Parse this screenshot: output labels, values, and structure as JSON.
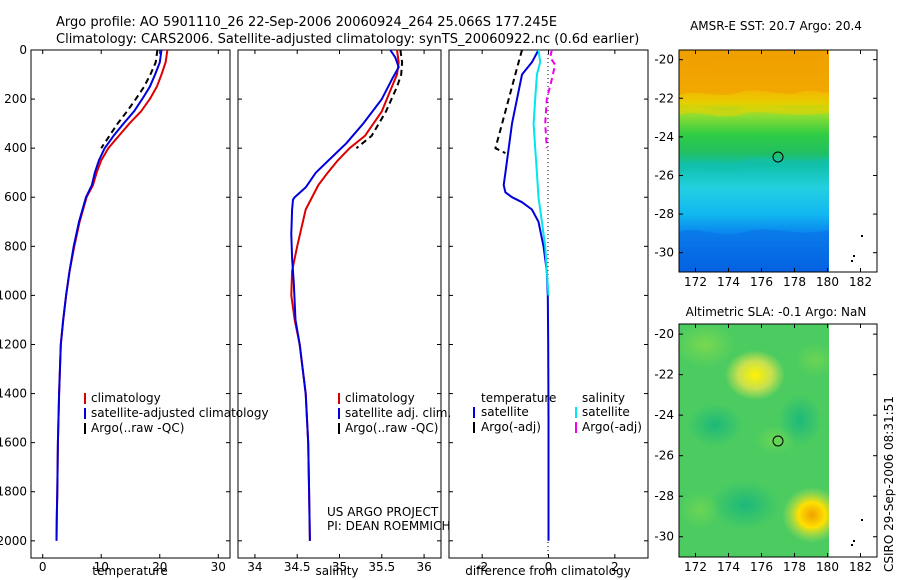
{
  "header": {
    "title_line1": "Argo profile: AO 5901110_26 22-Sep-2006 20060924_264 25.066S 177.245E",
    "title_line2": "Climatology: CARS2006. Satellite-adjusted climatology: synTS_20060922.nc (0.6d earlier)"
  },
  "colors": {
    "climatology": "#dd0000",
    "satellite": "#0000dd",
    "argo": "#000000",
    "sal_satellite": "#00e5ee",
    "sal_argo": "#ee00ee"
  },
  "footer": {
    "project": "US ARGO PROJECT",
    "pi": "PI: DEAN ROEMMICH",
    "timestamp": "CSIRO  29-Sep-2006 08:31:51"
  },
  "chart_data": [
    {
      "type": "line",
      "title": "",
      "xlabel": "temperature",
      "ylabel": "",
      "xlim": [
        -2,
        32
      ],
      "ylim": [
        0,
        2070
      ],
      "xticks": [
        0,
        10,
        20,
        30
      ],
      "yticks": [
        0,
        200,
        400,
        600,
        800,
        1000,
        1200,
        1400,
        1600,
        1800,
        2000
      ],
      "legend": [
        "climatology",
        "satellite-adjusted climatology",
        "Argo(..raw -QC)"
      ],
      "series": [
        {
          "name": "climatology",
          "color": "climatology",
          "dash": "solid",
          "x": [
            21.3,
            21.0,
            20.3,
            19.5,
            18.3,
            16.8,
            14.8,
            13.0,
            11.2,
            10.0,
            9.2,
            8.6,
            7.5,
            6.3,
            5.4,
            4.6,
            4.0,
            3.5,
            3.1,
            2.8,
            2.6,
            2.5,
            2.4,
            2.35
          ],
          "y": [
            0,
            50,
            100,
            150,
            200,
            250,
            300,
            350,
            400,
            450,
            500,
            550,
            600,
            700,
            800,
            900,
            1000,
            1100,
            1200,
            1400,
            1600,
            1800,
            1900,
            2000
          ]
        },
        {
          "name": "satellite-adjusted climatology",
          "color": "satellite",
          "dash": "solid",
          "x": [
            20.3,
            20.0,
            19.2,
            18.3,
            17.0,
            15.6,
            13.8,
            12.1,
            10.6,
            9.6,
            8.9,
            8.4,
            7.4,
            6.2,
            5.3,
            4.6,
            4.0,
            3.5,
            3.1,
            2.8,
            2.6,
            2.5,
            2.4,
            2.35
          ],
          "y": [
            0,
            50,
            100,
            150,
            200,
            250,
            300,
            350,
            400,
            450,
            500,
            550,
            600,
            700,
            800,
            900,
            1000,
            1100,
            1200,
            1400,
            1600,
            1800,
            1900,
            2000
          ]
        },
        {
          "name": "Argo(..raw -QC)",
          "color": "argo",
          "dash": "dashed",
          "x": [
            19.6,
            19.3,
            18.4,
            17.3,
            15.9,
            14.4,
            12.8,
            11.4,
            10.0
          ],
          "y": [
            0,
            50,
            100,
            150,
            200,
            250,
            300,
            350,
            400
          ]
        }
      ]
    },
    {
      "type": "line",
      "title": "",
      "xlabel": "salinity",
      "ylabel": "",
      "xlim": [
        33.8,
        36.2
      ],
      "ylim": [
        0,
        2070
      ],
      "xticks": [
        34,
        34.5,
        35,
        35.5,
        36
      ],
      "xticklabels": [
        "34",
        "34.5",
        "35",
        "35.5",
        "36"
      ],
      "legend": [
        "climatology",
        "satellite adj. clim.",
        "Argo(..raw -QC)"
      ],
      "series": [
        {
          "name": "climatology",
          "color": "climatology",
          "dash": "solid",
          "x": [
            35.68,
            35.7,
            35.68,
            35.62,
            35.5,
            35.3,
            35.12,
            34.98,
            34.86,
            34.75,
            34.6,
            34.5,
            34.44,
            34.43,
            34.47,
            34.53,
            34.6,
            34.63,
            34.64,
            34.65
          ],
          "y": [
            0,
            50,
            100,
            150,
            250,
            350,
            400,
            450,
            500,
            550,
            650,
            800,
            900,
            1000,
            1100,
            1200,
            1400,
            1600,
            1800,
            2000
          ]
        },
        {
          "name": "satellite adj. clim.",
          "color": "satellite",
          "dash": "solid",
          "x": [
            35.6,
            35.66,
            35.7,
            35.62,
            35.5,
            35.28,
            35.08,
            34.9,
            34.72,
            34.6,
            34.47,
            34.45,
            34.44,
            34.43,
            34.44,
            34.46,
            34.48,
            34.53,
            34.6,
            34.63,
            34.64,
            34.65
          ],
          "y": [
            0,
            30,
            70,
            120,
            200,
            300,
            380,
            440,
            500,
            560,
            600,
            610,
            650,
            750,
            850,
            950,
            1100,
            1200,
            1400,
            1600,
            1800,
            2000
          ]
        },
        {
          "name": "Argo(..raw -QC)",
          "color": "argo",
          "dash": "dashed",
          "x": [
            35.72,
            35.74,
            35.73,
            35.68,
            35.55,
            35.38,
            35.2
          ],
          "y": [
            0,
            50,
            100,
            150,
            250,
            350,
            400
          ]
        }
      ]
    },
    {
      "type": "line",
      "title": "",
      "xlabel": "difference from climatology",
      "ylabel": "",
      "xlim": [
        -3,
        3
      ],
      "ylim": [
        0,
        2070
      ],
      "xticks": [
        -2,
        0,
        2
      ],
      "legend": [
        "temperature",
        "satellite",
        "Argo(-adj)",
        "salinity",
        "satellite",
        "Argo(-adj)"
      ],
      "series": [
        {
          "name": "temperature satellite",
          "color": "satellite",
          "dash": "solid",
          "x": [
            -0.3,
            -0.5,
            -0.8,
            -0.95,
            -1.1,
            -1.2,
            -1.3,
            -1.35,
            -1.3,
            -1.1,
            -0.8,
            -0.5,
            -0.3,
            -0.15,
            -0.05,
            -0.02,
            -0.01,
            0,
            0
          ],
          "y": [
            0,
            50,
            100,
            200,
            300,
            400,
            500,
            550,
            580,
            600,
            620,
            650,
            700,
            800,
            900,
            1000,
            1200,
            1500,
            2000
          ]
        },
        {
          "name": "temperature Argo(-adj)",
          "color": "argo",
          "dash": "dashed",
          "x": [
            -0.8,
            -0.9,
            -1.0,
            -1.2,
            -1.4,
            -1.5,
            -1.6,
            -1.3
          ],
          "y": [
            0,
            50,
            100,
            200,
            300,
            350,
            400,
            420
          ]
        },
        {
          "name": "salinity satellite",
          "color": "sal_satellite",
          "dash": "solid",
          "x": [
            -0.3,
            -0.25,
            -0.35,
            -0.4,
            -0.45,
            -0.4,
            -0.35,
            -0.3,
            -0.2,
            -0.1,
            -0.05,
            0
          ],
          "y": [
            0,
            50,
            100,
            200,
            300,
            400,
            500,
            600,
            700,
            800,
            900,
            1000
          ]
        },
        {
          "name": "salinity Argo(-adj)",
          "color": "sal_argo",
          "dash": "dashed",
          "x": [
            0.1,
            0.05,
            0.2,
            0.1,
            -0.05,
            -0.1,
            -0.05
          ],
          "y": [
            0,
            30,
            60,
            120,
            200,
            300,
            400
          ]
        }
      ]
    },
    {
      "type": "heatmap",
      "title": "AMSR-E SST: 20.7 Argo: 20.4",
      "xlabel": "",
      "ylabel": "",
      "xlim": [
        171,
        183
      ],
      "ylim": [
        -31,
        -19.5
      ],
      "xticks": [
        172,
        174,
        176,
        178,
        180,
        182
      ],
      "yticks": [
        -20,
        -22,
        -24,
        -26,
        -28,
        -30
      ],
      "data_extent_lon": [
        171,
        180.2
      ],
      "profile_location": {
        "lon": 177.245,
        "lat": -25.066
      },
      "bands": [
        {
          "lat_top": -19.5,
          "lat_bottom": -22.4,
          "desc": "warm (orange)"
        },
        {
          "lat_top": -22.4,
          "lat_bottom": -23.6,
          "desc": "yellow-green"
        },
        {
          "lat_top": -23.6,
          "lat_bottom": -25.3,
          "desc": "green"
        },
        {
          "lat_top": -25.3,
          "lat_bottom": -28.8,
          "desc": "cyan"
        },
        {
          "lat_top": -28.8,
          "lat_bottom": -31,
          "desc": "cold (blue)"
        }
      ]
    },
    {
      "type": "heatmap",
      "title": "Altimetric SLA: -0.1 Argo: NaN",
      "xlabel": "",
      "ylabel": "",
      "xlim": [
        171,
        183
      ],
      "ylim": [
        -31,
        -19.5
      ],
      "xticks": [
        172,
        174,
        176,
        178,
        180,
        182
      ],
      "yticks": [
        -20,
        -22,
        -24,
        -26,
        -28,
        -30
      ],
      "data_extent_lon": [
        171,
        180.2
      ],
      "profile_location": {
        "lon": 177.245,
        "lat": -25.066
      }
    }
  ]
}
